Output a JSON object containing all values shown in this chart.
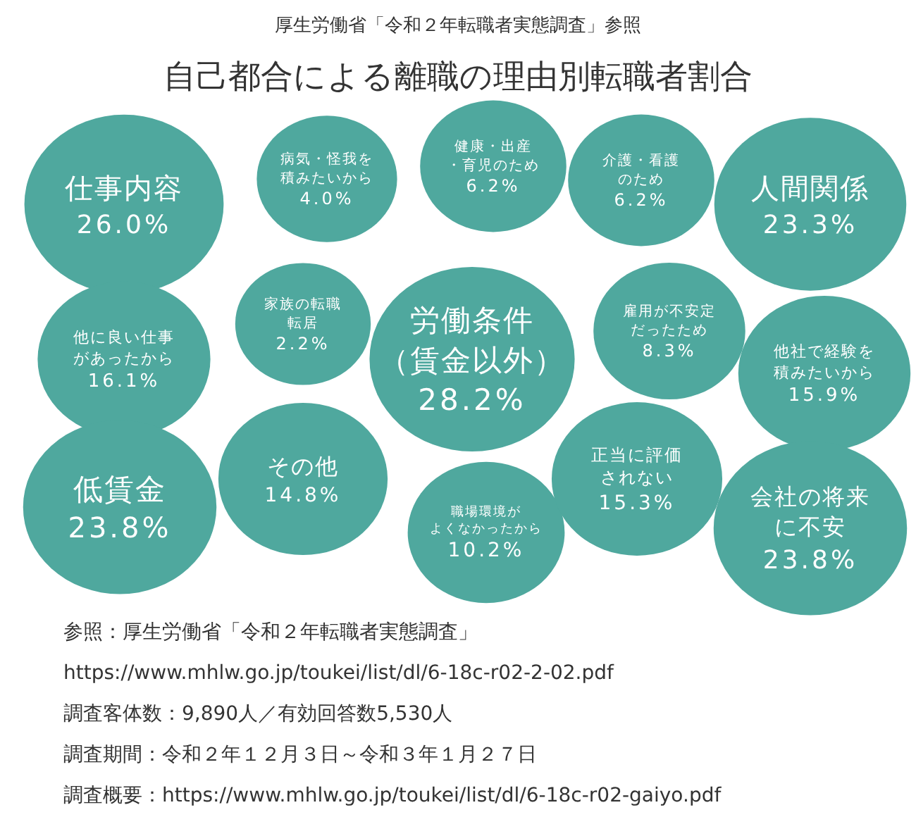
{
  "chart_data": {
    "type": "other",
    "subtitle": "厚生労働省「令和２年転職者実態調査」参照",
    "title": "自己都合による離職の理由別転職者割合",
    "categories": [
      "仕事内容",
      "病気・怪我を積みたいから",
      "健康・出産・育児のため",
      "介護・看護のため",
      "人間関係",
      "他に良い仕事があったから",
      "家族の転職転居",
      "労働条件（賃金以外）",
      "雇用が不安定だったため",
      "他社で経験を積みたいから",
      "低賃金",
      "その他",
      "職場環境がよくなかったから",
      "正当に評価されない",
      "会社の将来に不安"
    ],
    "values": [
      26.0,
      4.0,
      6.2,
      6.2,
      23.3,
      16.1,
      2.2,
      28.2,
      8.3,
      15.9,
      23.8,
      14.8,
      10.2,
      15.3,
      23.8
    ],
    "value_labels": [
      "26.0%",
      "4.0%",
      "6.2%",
      "6.2%",
      "23.3%",
      "16.1%",
      "2.2%",
      "28.2%",
      "8.3%",
      "15.9%",
      "23.8%",
      "14.8%",
      "10.2%",
      "15.3%",
      "23.8%"
    ],
    "color": "#4fa89e",
    "annotations": [
      "参照：厚生労働省「令和２年転職者実態調査」",
      "https://www.mhlw.go.jp/toukei/list/dl/6-18c-r02-2-02.pdf",
      "調査客体数：9,890人／有効回答数5,530人",
      "調査期間：令和２年１２月３日～令和３年１月２７日",
      "調査概要：https://www.mhlw.go.jp/toukei/list/dl/6-18c-r02-gaiyo.pdf"
    ]
  }
}
